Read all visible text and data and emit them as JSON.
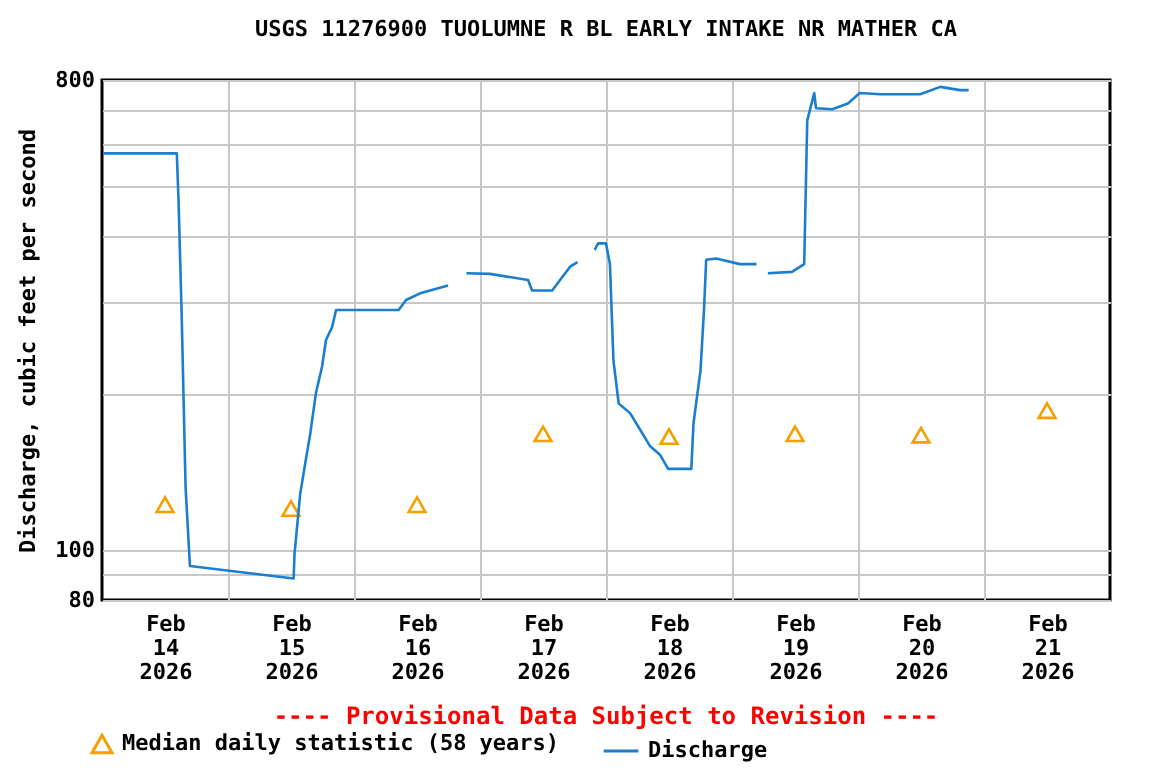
{
  "chart_data": {
    "type": "line",
    "title": "USGS 11276900 TUOLUMNE R BL EARLY INTAKE NR MATHER CA",
    "ylabel": "Discharge, cubic feet per second",
    "annotations": [
      "---- Provisional Data Subject to Revision ----"
    ],
    "log": "y",
    "grid": true,
    "legend": "bottom",
    "xlim": [
      "2026-02-14T00:00",
      "2026-02-22T00:00"
    ],
    "xticks": [
      {
        "value": "2026-02-14T12:00",
        "label": "Feb\n14\n2026"
      },
      {
        "value": "2026-02-15T00:00",
        "label": null
      },
      {
        "value": "2026-02-15T12:00",
        "label": "Feb\n15\n2026"
      },
      {
        "value": "2026-02-16T00:00",
        "label": null
      },
      {
        "value": "2026-02-16T12:00",
        "label": "Feb\n16\n2026"
      },
      {
        "value": "2026-02-17T00:00",
        "label": null
      },
      {
        "value": "2026-02-17T12:00",
        "label": "Feb\n17\n2026"
      },
      {
        "value": "2026-02-18T00:00",
        "label": null
      },
      {
        "value": "2026-02-18T12:00",
        "label": "Feb\n18\n2026"
      },
      {
        "value": "2026-02-19T00:00",
        "label": null
      },
      {
        "value": "2026-02-19T12:00",
        "label": "Feb\n19\n2026"
      },
      {
        "value": "2026-02-20T00:00",
        "label": null
      },
      {
        "value": "2026-02-20T12:00",
        "label": "Feb\n20\n2026"
      },
      {
        "value": "2026-02-21T00:00",
        "label": null
      },
      {
        "value": "2026-02-21T12:00",
        "label": "Feb\n21\n2026"
      }
    ],
    "ylim": [
      80,
      800
    ],
    "yticks": [
      80,
      {
        "value": 90,
        "label": null
      },
      100,
      {
        "value": 200,
        "label": null
      },
      {
        "value": 300,
        "label": null
      },
      {
        "value": 400,
        "label": null
      },
      {
        "value": 500,
        "label": null
      },
      {
        "value": 600,
        "label": null
      },
      {
        "value": 700,
        "label": null
      },
      800
    ],
    "series": [
      {
        "name": "Median daily statistic (58 years)",
        "type": "scatter",
        "marker": "triangle",
        "color": "#f5a000",
        "x": [
          "2026-02-14T12:00",
          "2026-02-15T12:00",
          "2026-02-16T12:00",
          "2026-02-17T12:00",
          "2026-02-18T12:00",
          "2026-02-19T12:00",
          "2026-02-20T12:00",
          "2026-02-21T12:00"
        ],
        "values": [
          122,
          120,
          122,
          167,
          165,
          167,
          166,
          185
        ]
      },
      {
        "name": "Discharge",
        "type": "line",
        "color": "#1a7fd0",
        "x": [
          "2026-02-14T00:15",
          "2026-02-14T14:15",
          "2026-02-14T14:35",
          "2026-02-14T15:10",
          "2026-02-14T15:55",
          "2026-02-14T16:45",
          "2026-02-15T12:30",
          "2026-02-15T12:40",
          "2026-02-15T13:45",
          "2026-02-15T14:50",
          "2026-02-15T15:40",
          "2026-02-15T16:45",
          "2026-02-15T17:55",
          "2026-02-15T18:40",
          "2026-02-15T19:50",
          "2026-02-15T20:35",
          "2026-02-16T08:30",
          "2026-02-16T09:55",
          "2026-02-16T12:35",
          "2026-02-16T17:55",
          "2026-02-16T19:40",
          "2026-02-16T21:25",
          "2026-02-17T01:55",
          "2026-02-17T09:10",
          "2026-02-17T09:55",
          "2026-02-17T13:45",
          "2026-02-17T15:15",
          "2026-02-17T17:10",
          "2026-02-17T18:35",
          "2026-02-17T20:10",
          "2026-02-17T21:50",
          "2026-02-17T22:30",
          "2026-02-18T00:00",
          "2026-02-18T00:45",
          "2026-02-18T01:25",
          "2026-02-18T02:25",
          "2026-02-18T04:35",
          "2026-02-18T06:30",
          "2026-02-18T08:25",
          "2026-02-18T10:20",
          "2026-02-18T11:50",
          "2026-02-18T16:15",
          "2026-02-18T16:40",
          "2026-02-18T18:00",
          "2026-02-18T18:40",
          "2026-02-18T19:05",
          "2026-02-18T21:00",
          "2026-02-19T01:30",
          "2026-02-19T04:40",
          "2026-02-19T05:45",
          "2026-02-19T06:50",
          "2026-02-19T11:25",
          "2026-02-19T13:45",
          "2026-02-19T14:20",
          "2026-02-19T15:40",
          "2026-02-19T16:00",
          "2026-02-19T19:05",
          "2026-02-19T22:05",
          "2026-02-20T00:20",
          "2026-02-20T04:10",
          "2026-02-20T11:50",
          "2026-02-20T15:40",
          "2026-02-20T19:25",
          "2026-02-20T21:05"
        ],
        "values": [
          578,
          578,
          467,
          285,
          132,
          93,
          88,
          98,
          128,
          149,
          167,
          200,
          225,
          253,
          268,
          289,
          289,
          302,
          311,
          322,
          null,
          340,
          339,
          330,
          315,
          315,
          330,
          350,
          357,
          null,
          377,
          388,
          388,
          354,
          231,
          191,
          183,
          170,
          158,
          152,
          143,
          143,
          175,
          221,
          289,
          361,
          363,
          354,
          354,
          null,
          340,
          342,
          354,
          669,
          755,
          706,
          703,
          721,
          755,
          751,
          751,
          776,
          765,
          765
        ]
      }
    ]
  }
}
